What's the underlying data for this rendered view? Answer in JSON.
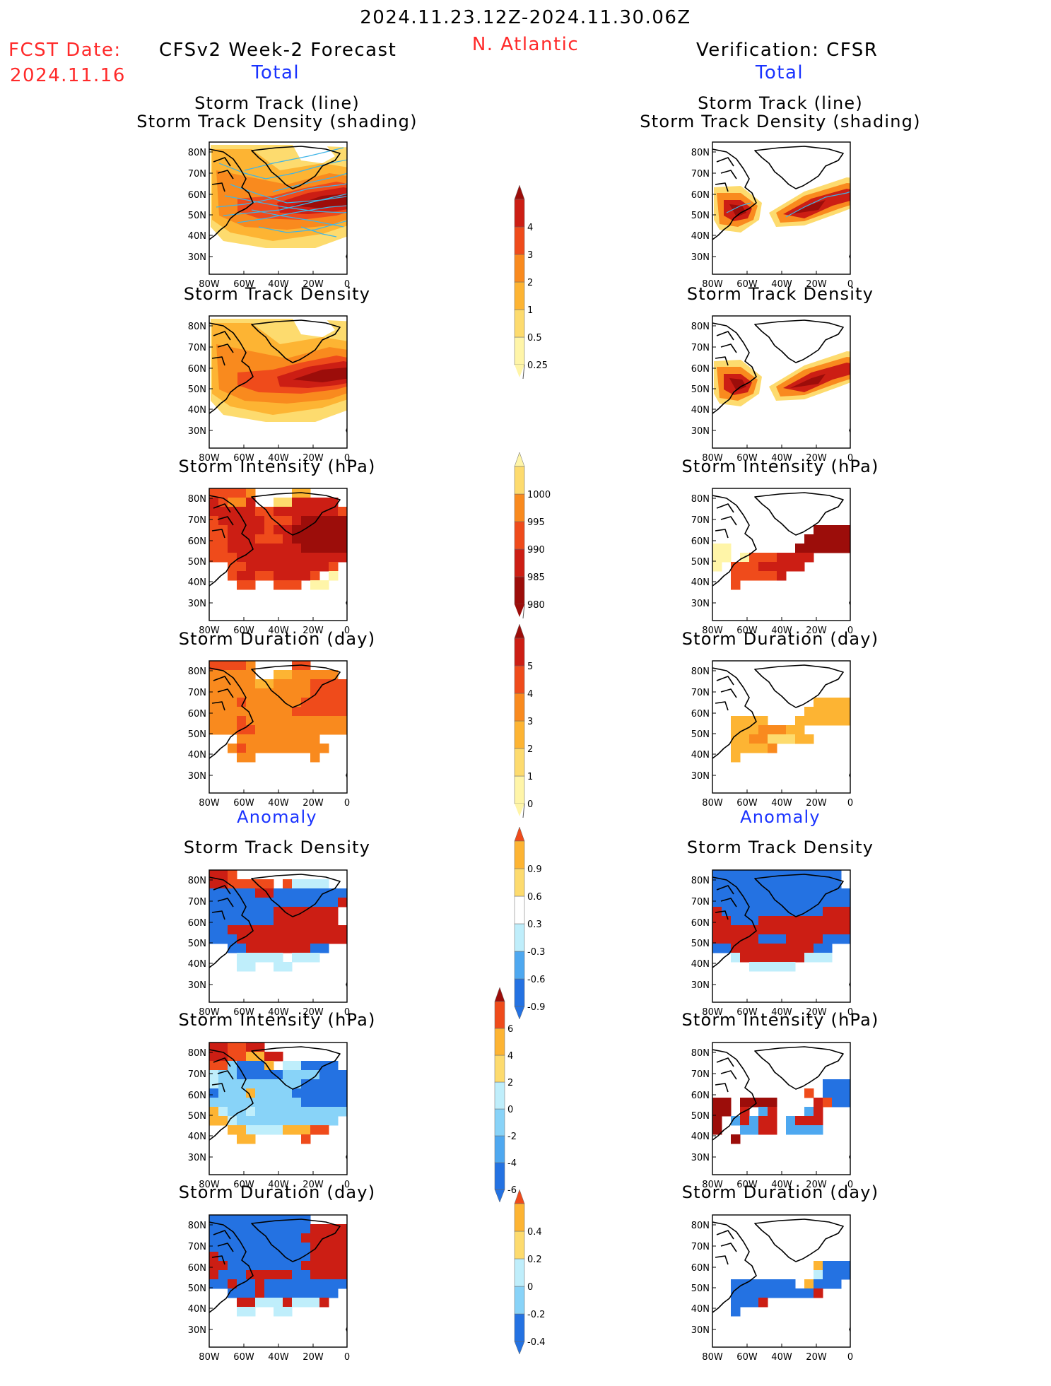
{
  "header": {
    "date_range": "2024.11.23.12Z-2024.11.30.06Z",
    "region": "N. Atlantic",
    "fcst_label": "FCST Date:",
    "fcst_date": "2024.11.16",
    "left_title": "CFSv2 Week-2 Forecast",
    "right_title": "Verification: CFSR",
    "left_subtitle": "Total",
    "right_subtitle": "Total",
    "left_anomaly": "Anomaly",
    "right_anomaly": "Anomaly"
  },
  "panel_titles": {
    "p1_line1": "Storm Track (line)",
    "p1_line2": "Storm Track Density (shading)",
    "p2": "Storm Track Density",
    "p3": "Storm Intensity (hPa)",
    "p4": "Storm Duration (day)",
    "p5": "Storm Track Density",
    "p6": "Storm Intensity (hPa)",
    "p7": "Storm Duration (day)"
  },
  "axes": {
    "lat_labels": [
      "80N",
      "70N",
      "60N",
      "50N",
      "40N",
      "30N"
    ],
    "lon_labels": [
      "80W",
      "60W",
      "40W",
      "20W",
      "0"
    ]
  },
  "colorbars": {
    "density": [
      "0.25",
      "0.5",
      "1",
      "2",
      "3",
      "4"
    ],
    "intensity": [
      "1000",
      "995",
      "990",
      "985",
      "980"
    ],
    "duration": [
      "0",
      "1",
      "2",
      "3",
      "4",
      "5"
    ],
    "density_anom": [
      "-0.9",
      "-0.6",
      "-0.3",
      "0.3",
      "0.6",
      "0.9"
    ],
    "intensity_anom": [
      "-6",
      "-4",
      "-2",
      "0",
      "2",
      "4",
      "6"
    ],
    "duration_anom": [
      "-0.4",
      "-0.2",
      "0",
      "0.2",
      "0.4"
    ]
  },
  "colors": {
    "warm": [
      "#fff5a8",
      "#fddb6e",
      "#fdb433",
      "#f98a1e",
      "#ef4b1b",
      "#cc1e14",
      "#9c0d0a"
    ],
    "cool": [
      "#bfeefb",
      "#88d3f8",
      "#4ea8f0",
      "#2472e2"
    ],
    "title_red": "#ff2a2a",
    "title_blue": "#1a33ff",
    "track_line": "#3fb5e8"
  }
}
